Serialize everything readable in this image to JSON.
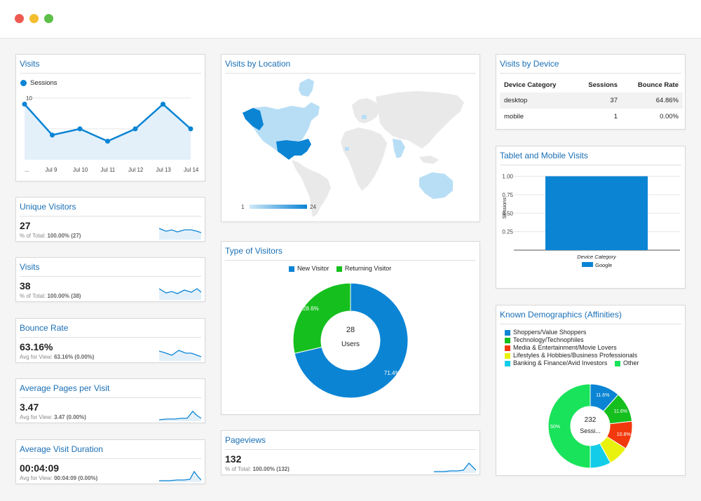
{
  "window": {
    "controls": [
      "close",
      "minimize",
      "maximize"
    ]
  },
  "visits": {
    "title": "Visits",
    "legend": "Sessions",
    "y_ticks": [
      "10",
      "5"
    ],
    "x_ticks": [
      "...",
      "Jul 9",
      "Jul 10",
      "Jul 11",
      "Jul 12",
      "Jul 13",
      "Jul 14"
    ]
  },
  "unique_visitors": {
    "title": "Unique Visitors",
    "value": "27",
    "sub_label": "% of Total: ",
    "sub_value": "100.00% (27)"
  },
  "visits_metric": {
    "title": "Visits",
    "value": "38",
    "sub_label": "% of Total: ",
    "sub_value": "100.00% (38)"
  },
  "bounce_rate": {
    "title": "Bounce Rate",
    "value": "63.16%",
    "sub_label": "Avg for View: ",
    "sub_value": "63.16% (0.00%)"
  },
  "avg_pages": {
    "title": "Average Pages per Visit",
    "value": "3.47",
    "sub_label": "Avg for View: ",
    "sub_value": "3.47 (0.00%)"
  },
  "avg_duration": {
    "title": "Average Visit Duration",
    "value": "00:04:09",
    "sub_label": "Avg for View: ",
    "sub_value": "00:04:09 (0.00%)"
  },
  "location": {
    "title": "Visits by Location",
    "scale_min": "1",
    "scale_max": "24"
  },
  "type_of_visitors": {
    "title": "Type of Visitors",
    "legend": [
      "New Visitor",
      "Returning Visitor"
    ],
    "center_value": "28",
    "center_label": "Users",
    "labels": [
      "71.4%",
      "28.6%"
    ]
  },
  "pageviews": {
    "title": "Pageviews",
    "value": "132",
    "sub_label": "% of Total: ",
    "sub_value": "100.00% (132)"
  },
  "device": {
    "title": "Visits by Device",
    "headers": [
      "Device Category",
      "Sessions",
      "Bounce Rate"
    ],
    "rows": [
      {
        "category": "desktop",
        "sessions": "37",
        "bounce": "64.86%"
      },
      {
        "category": "mobile",
        "sessions": "1",
        "bounce": "0.00%"
      }
    ]
  },
  "tablet": {
    "title": "Tablet and Mobile Visits",
    "y_ticks": [
      "1.00",
      "0.75",
      "0.50",
      "0.25"
    ],
    "y_label": "Sessions",
    "x_label": "Device Category",
    "legend": "Google"
  },
  "demographics": {
    "title": "Known Demographics (Affinities)",
    "legend": [
      "Shoppers/Value Shoppers",
      "Technology/Technophiles",
      "Media & Entertainment/Movie Lovers",
      "Lifestyles & Hobbies/Business Professionals",
      "Banking & Finance/Avid Investors",
      "Other"
    ],
    "center_value": "232",
    "center_label": "Sessi...",
    "labels": [
      "11.6%",
      "11.6%",
      "10.8%",
      "50%"
    ]
  },
  "colors": {
    "accent": "#1a6fb5",
    "blue": "#0b84d4",
    "green": "#15bf1e",
    "red": "#f2390d",
    "yellow": "#e8f20d",
    "cyan": "#13cde8",
    "lightgreen": "#19e35a",
    "area": "#e3f0fa"
  },
  "chart_data": [
    {
      "type": "line",
      "title": "Visits",
      "x": [
        "...",
        "Jul 9",
        "Jul 10",
        "Jul 11",
        "Jul 12",
        "Jul 13",
        "Jul 14"
      ],
      "series": [
        {
          "name": "Sessions",
          "values": [
            9,
            4,
            5,
            3,
            5,
            9,
            5
          ]
        }
      ],
      "ylim": [
        0,
        11
      ]
    },
    {
      "type": "pie",
      "title": "Type of Visitors",
      "categories": [
        "New Visitor",
        "Returning Visitor"
      ],
      "values": [
        71.4,
        28.6
      ]
    },
    {
      "type": "bar",
      "title": "Tablet and Mobile Visits",
      "categories": [
        "Google"
      ],
      "values": [
        1
      ],
      "ylim": [
        0,
        1.1
      ],
      "xlabel": "Device Category",
      "ylabel": "Sessions"
    },
    {
      "type": "pie",
      "title": "Known Demographics (Affinities)",
      "categories": [
        "Shoppers/Value Shoppers",
        "Technology/Technophiles",
        "Media & Entertainment/Movie Lovers",
        "Lifestyles & Hobbies/Business Professionals",
        "Banking & Finance/Avid Investors",
        "Other"
      ],
      "values": [
        11.6,
        11.6,
        10.8,
        8.0,
        8.0,
        50
      ]
    }
  ]
}
